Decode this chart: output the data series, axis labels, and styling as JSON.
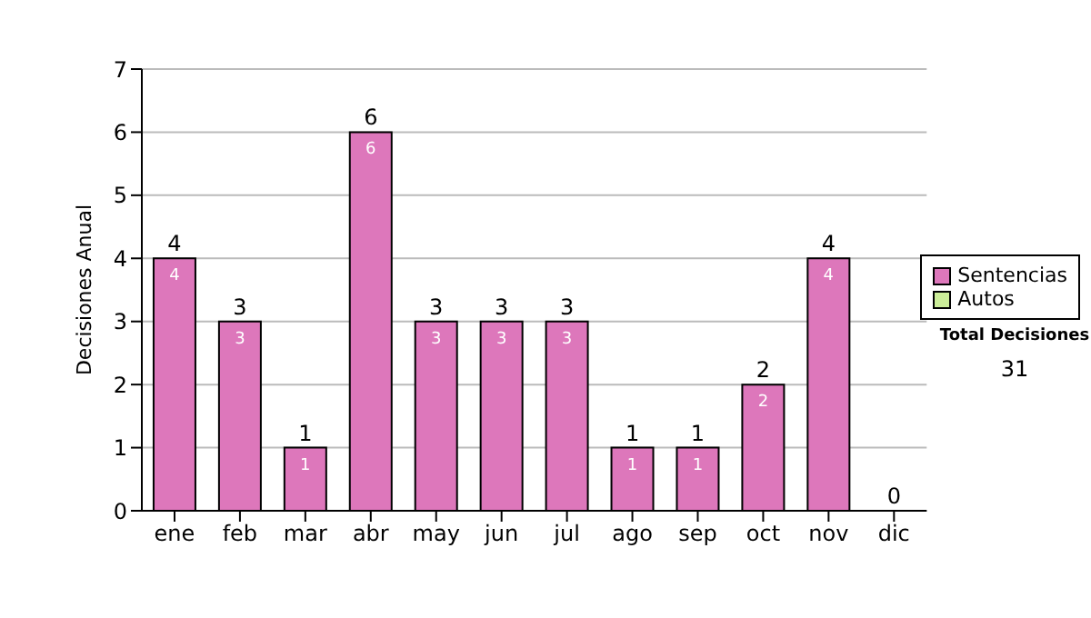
{
  "chart_data": {
    "type": "bar",
    "stacked": true,
    "ylabel": "Decisiones Anual",
    "categories": [
      "ene",
      "feb",
      "mar",
      "abr",
      "may",
      "jun",
      "jul",
      "ago",
      "sep",
      "oct",
      "nov",
      "dic"
    ],
    "series": [
      {
        "name": "Sentencias",
        "color": "#dd77bb",
        "values": [
          4,
          3,
          1,
          6,
          3,
          3,
          3,
          1,
          1,
          2,
          4,
          0
        ],
        "value_labels": [
          "4",
          "3",
          "1",
          "6",
          "3",
          "3",
          "3",
          "1",
          "1",
          "2",
          "4",
          null
        ]
      },
      {
        "name": "Autos",
        "color": "#ccee99",
        "values": [
          0,
          0,
          0,
          0,
          0,
          0,
          0,
          0,
          0,
          0,
          0,
          0
        ]
      }
    ],
    "totals": [
      "4",
      "3",
      "1",
      "6",
      "3",
      "3",
      "3",
      "1",
      "1",
      "2",
      "4",
      "0"
    ],
    "ylim": [
      0,
      7
    ],
    "yticks": [
      0,
      1,
      2,
      3,
      4,
      5,
      6,
      7
    ],
    "grid": "y",
    "legend": "right",
    "annotations": [
      "Total Decisiones",
      "31"
    ]
  }
}
